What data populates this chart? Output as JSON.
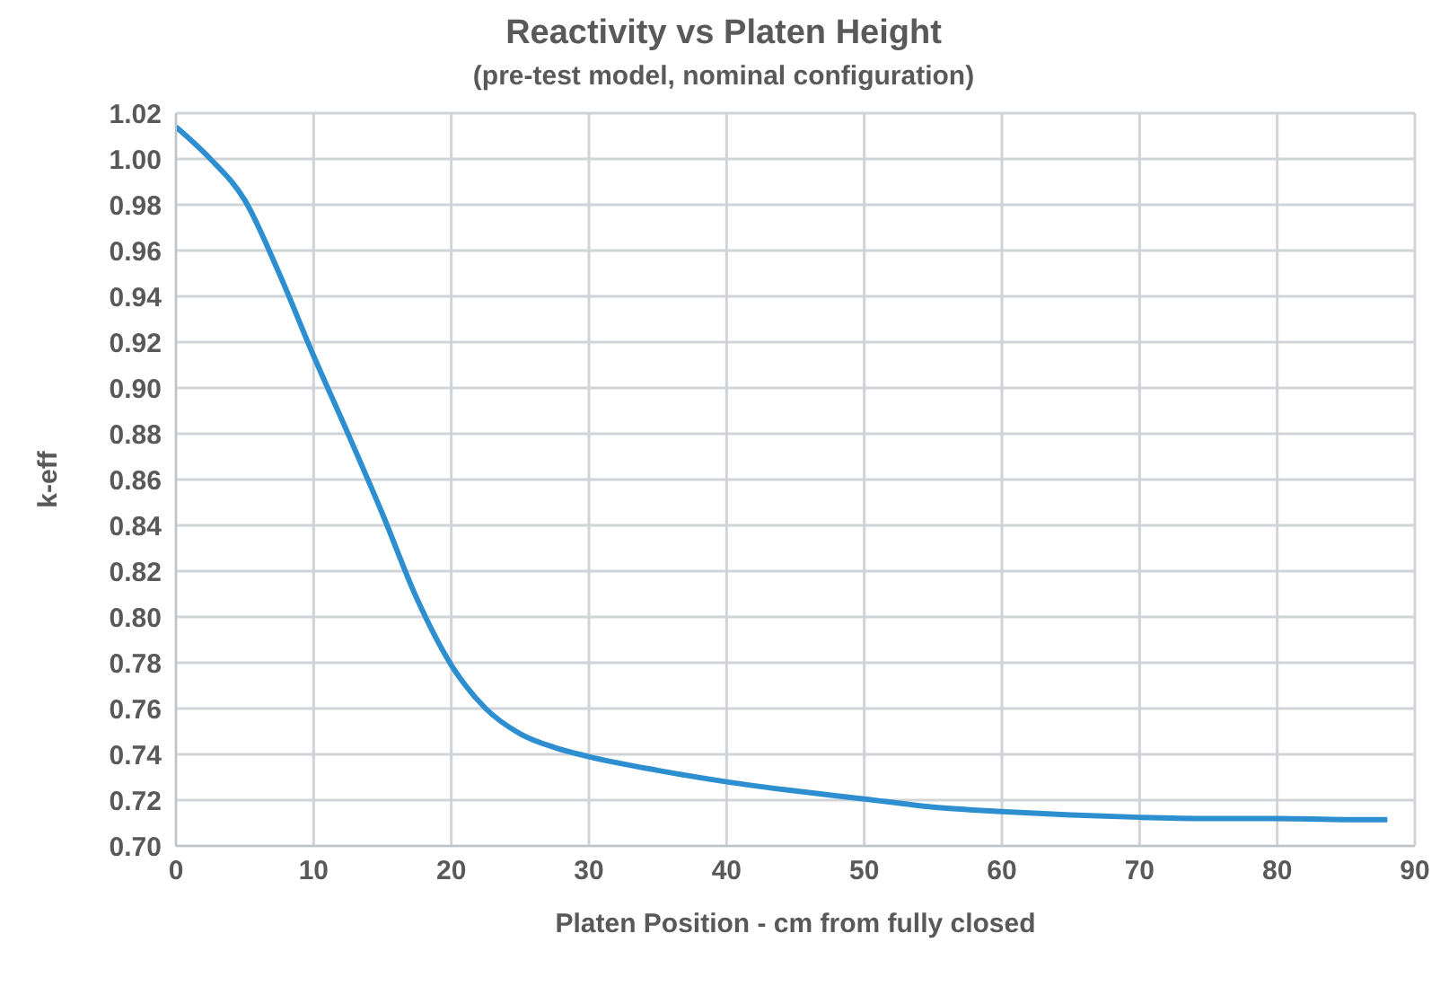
{
  "chart_data": {
    "type": "line",
    "title": "Reactivity vs Platen Height",
    "subtitle": "(pre-test model, nominal configuration)",
    "xlabel": "Platen Position - cm from fully closed",
    "ylabel": "k-eff",
    "x": [
      0,
      2.5,
      5,
      7.5,
      10,
      12.5,
      15,
      17.5,
      20,
      22.5,
      25,
      27.5,
      30,
      35,
      40,
      45,
      50,
      55,
      60,
      65,
      70,
      75,
      80,
      85,
      88
    ],
    "series": [
      {
        "color": "#2e8fd0",
        "values": [
          1.014,
          1.0,
          0.982,
          0.95,
          0.914,
          0.88,
          0.845,
          0.808,
          0.779,
          0.76,
          0.749,
          0.743,
          0.739,
          0.733,
          0.728,
          0.724,
          0.7205,
          0.717,
          0.715,
          0.7135,
          0.7125,
          0.712,
          0.712,
          0.7115,
          0.7115
        ]
      }
    ],
    "xlim": [
      0,
      90
    ],
    "xticks": [
      0,
      10,
      20,
      30,
      40,
      50,
      60,
      70,
      80,
      90
    ],
    "ylim": [
      0.7,
      1.02
    ],
    "yticks": [
      {
        "value": 0.7,
        "label": "0.70"
      },
      {
        "value": 0.72,
        "label": "0.72"
      },
      {
        "value": 0.74,
        "label": "0.74"
      },
      {
        "value": 0.76,
        "label": "0.76"
      },
      {
        "value": 0.78,
        "label": "0.78"
      },
      {
        "value": 0.8,
        "label": "0.80"
      },
      {
        "value": 0.82,
        "label": "0.82"
      },
      {
        "value": 0.84,
        "label": "0.84"
      },
      {
        "value": 0.86,
        "label": "0.86"
      },
      {
        "value": 0.88,
        "label": "0.88"
      },
      {
        "value": 0.9,
        "label": "0.90"
      },
      {
        "value": 0.92,
        "label": "0.92"
      },
      {
        "value": 0.94,
        "label": "0.94"
      },
      {
        "value": 0.96,
        "label": "0.96"
      },
      {
        "value": 0.98,
        "label": "0.98"
      },
      {
        "value": 1.0,
        "label": "1.00"
      },
      {
        "value": 1.02,
        "label": "1.02"
      }
    ],
    "grid": true,
    "legend": false,
    "marker": "none",
    "line_style": "solid"
  }
}
